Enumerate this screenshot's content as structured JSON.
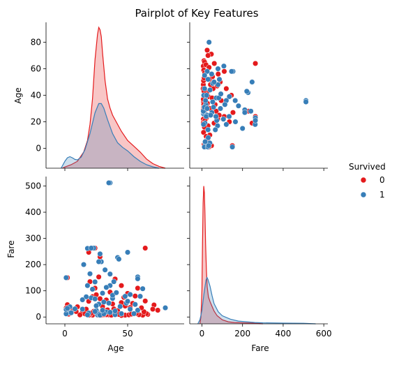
{
  "chart_data": {
    "type": "scatter",
    "title": "Pairplot of Key Features",
    "variables": [
      "Age",
      "Fare"
    ],
    "hue": {
      "title": "Survived",
      "levels": [
        "0",
        "1"
      ],
      "colors": {
        "0": "#e41a1c",
        "1": "#377eb8"
      }
    },
    "axes": {
      "Age": {
        "label": "Age",
        "range": [
          -15,
          95
        ],
        "ticks": [
          0,
          20,
          40,
          60,
          80
        ],
        "xticks": [
          0,
          50
        ]
      },
      "Fare": {
        "label": "Fare",
        "range": [
          -26,
          536
        ],
        "ticks": [
          0,
          100,
          200,
          300,
          400,
          500
        ],
        "xticks": [
          0,
          200,
          400,
          600
        ],
        "xrange": [
          -60,
          620
        ]
      }
    },
    "diagonal": {
      "Age": {
        "type": "kde",
        "ylim": [
          0,
          0.062
        ],
        "series": [
          {
            "name": "0",
            "x": [
              -2,
              0,
              5,
              10,
              15,
              18,
              20,
              22,
              24,
              26,
              27,
              28,
              29,
              30,
              32,
              34,
              36,
              38,
              40,
              45,
              50,
              55,
              60,
              65,
              70,
              75,
              80
            ],
            "y": [
              0.0,
              0.0005,
              0.0015,
              0.003,
              0.007,
              0.012,
              0.019,
              0.03,
              0.047,
              0.058,
              0.061,
              0.06,
              0.057,
              0.05,
              0.038,
              0.03,
              0.026,
              0.023,
              0.021,
              0.016,
              0.012,
              0.0095,
              0.007,
              0.004,
              0.002,
              0.0008,
              0.0
            ]
          },
          {
            "name": "1",
            "x": [
              -3,
              0,
              2,
              4,
              6,
              8,
              10,
              13,
              16,
              20,
              24,
              27,
              29,
              31,
              34,
              38,
              42,
              46,
              50,
              55,
              60,
              65,
              70,
              75
            ],
            "y": [
              0.0,
              0.003,
              0.0045,
              0.005,
              0.0045,
              0.0038,
              0.0036,
              0.0048,
              0.008,
              0.015,
              0.024,
              0.028,
              0.028,
              0.026,
              0.021,
              0.015,
              0.011,
              0.009,
              0.0075,
              0.005,
              0.003,
              0.0015,
              0.0006,
              0.0
            ]
          }
        ]
      },
      "Fare": {
        "type": "kde",
        "ylim": [
          0,
          0.0215
        ],
        "series": [
          {
            "name": "0",
            "x": [
              -10,
              -5,
              0,
              3,
              6,
              9,
              12,
              15,
              18,
              22,
              26,
              32,
              40,
              50,
              60,
              75,
              100,
              130,
              160,
              200,
              240,
              280,
              300
            ],
            "y": [
              0.0,
              0.001,
              0.005,
              0.012,
              0.018,
              0.0205,
              0.0195,
              0.0165,
              0.012,
              0.008,
              0.0055,
              0.004,
              0.0033,
              0.0026,
              0.0019,
              0.0012,
              0.0006,
              0.0003,
              0.0002,
              0.00015,
              0.0001,
              5e-05,
              0.0
            ]
          },
          {
            "name": "1",
            "x": [
              -20,
              -10,
              0,
              10,
              20,
              25,
              30,
              40,
              50,
              60,
              80,
              100,
              140,
              180,
              220,
              260,
              300,
              400,
              500,
              560
            ],
            "y": [
              0.0,
              0.0006,
              0.002,
              0.0045,
              0.0065,
              0.0069,
              0.0066,
              0.0056,
              0.0042,
              0.003,
              0.0018,
              0.0012,
              0.0007,
              0.0004,
              0.0003,
              0.0002,
              0.00015,
              0.0001,
              8e-05,
              0.0
            ]
          }
        ]
      }
    },
    "scatter": {
      "x": "Fare",
      "y": "Age",
      "points": [
        {
          "x": 7,
          "y": 22,
          "s": "0"
        },
        {
          "x": 8,
          "y": 35,
          "s": "0"
        },
        {
          "x": 52,
          "y": 54,
          "s": "0"
        },
        {
          "x": 21,
          "y": 2,
          "s": "0"
        },
        {
          "x": 8,
          "y": 20,
          "s": "0"
        },
        {
          "x": 31,
          "y": 39,
          "s": "0"
        },
        {
          "x": 18,
          "y": 14,
          "s": "0"
        },
        {
          "x": 26,
          "y": 31,
          "s": "0"
        },
        {
          "x": 8,
          "y": 44,
          "s": "0"
        },
        {
          "x": 7,
          "y": 29,
          "s": "0"
        },
        {
          "x": 46,
          "y": 71,
          "s": "0"
        },
        {
          "x": 26,
          "y": 74,
          "s": "0"
        },
        {
          "x": 10,
          "y": 66,
          "s": "0"
        },
        {
          "x": 13,
          "y": 65,
          "s": "0"
        },
        {
          "x": 30,
          "y": 70,
          "s": "0"
        },
        {
          "x": 7,
          "y": 62,
          "s": "0"
        },
        {
          "x": 20,
          "y": 63,
          "s": "0"
        },
        {
          "x": 35,
          "y": 61,
          "s": "0"
        },
        {
          "x": 9,
          "y": 59,
          "s": "0"
        },
        {
          "x": 14,
          "y": 57,
          "s": "0"
        },
        {
          "x": 26,
          "y": 58,
          "s": "0"
        },
        {
          "x": 61,
          "y": 64,
          "s": "0"
        },
        {
          "x": 80,
          "y": 56,
          "s": "0"
        },
        {
          "x": 110,
          "y": 58,
          "s": "0"
        },
        {
          "x": 75,
          "y": 47,
          "s": "0"
        },
        {
          "x": 90,
          "y": 50,
          "s": "0"
        },
        {
          "x": 55,
          "y": 45,
          "s": "0"
        },
        {
          "x": 120,
          "y": 45,
          "s": "0"
        },
        {
          "x": 145,
          "y": 40,
          "s": "0"
        },
        {
          "x": 95,
          "y": 36,
          "s": "0"
        },
        {
          "x": 65,
          "y": 33,
          "s": "0"
        },
        {
          "x": 40,
          "y": 30,
          "s": "0"
        },
        {
          "x": 230,
          "y": 28,
          "s": "0"
        },
        {
          "x": 263,
          "y": 64,
          "s": "0"
        },
        {
          "x": 263,
          "y": 24,
          "s": "0"
        },
        {
          "x": 247,
          "y": 19,
          "s": "0"
        },
        {
          "x": 153,
          "y": 27,
          "s": "0"
        },
        {
          "x": 110,
          "y": 24,
          "s": "0"
        },
        {
          "x": 78,
          "y": 22,
          "s": "0"
        },
        {
          "x": 60,
          "y": 19,
          "s": "0"
        },
        {
          "x": 30,
          "y": 17,
          "s": "0"
        },
        {
          "x": 12,
          "y": 16,
          "s": "0"
        },
        {
          "x": 8,
          "y": 12,
          "s": "0"
        },
        {
          "x": 21,
          "y": 9,
          "s": "0"
        },
        {
          "x": 31,
          "y": 4,
          "s": "0"
        },
        {
          "x": 29,
          "y": 7,
          "s": "0"
        },
        {
          "x": 39,
          "y": 10,
          "s": "0"
        },
        {
          "x": 47,
          "y": 2,
          "s": "0"
        },
        {
          "x": 34,
          "y": 1,
          "s": "0"
        },
        {
          "x": 11,
          "y": 3,
          "s": "0"
        },
        {
          "x": 7,
          "y": 48,
          "s": "0"
        },
        {
          "x": 8,
          "y": 51,
          "s": "0"
        },
        {
          "x": 13,
          "y": 40,
          "s": "0"
        },
        {
          "x": 16,
          "y": 37,
          "s": "0"
        },
        {
          "x": 9,
          "y": 33,
          "s": "0"
        },
        {
          "x": 24,
          "y": 42,
          "s": "0"
        },
        {
          "x": 16,
          "y": 25,
          "s": "0"
        },
        {
          "x": 14,
          "y": 28,
          "s": "0"
        },
        {
          "x": 7,
          "y": 26,
          "s": "0"
        },
        {
          "x": 22,
          "y": 23,
          "s": "0"
        },
        {
          "x": 27,
          "y": 34,
          "s": "0"
        },
        {
          "x": 6,
          "y": 45,
          "s": "0"
        },
        {
          "x": 11,
          "y": 53,
          "s": "0"
        },
        {
          "x": 36,
          "y": 52,
          "s": "0"
        },
        {
          "x": 42,
          "y": 48,
          "s": "0"
        },
        {
          "x": 50,
          "y": 38,
          "s": "0"
        },
        {
          "x": 70,
          "y": 28,
          "s": "0"
        },
        {
          "x": 85,
          "y": 25,
          "s": "0"
        },
        {
          "x": 135,
          "y": 20,
          "s": "0"
        },
        {
          "x": 150,
          "y": 2,
          "s": "0"
        },
        {
          "x": 7,
          "y": 19,
          "s": "0"
        },
        {
          "x": 9,
          "y": 31,
          "s": "0"
        },
        {
          "x": 7,
          "y": 37,
          "s": "0"
        },
        {
          "x": 10,
          "y": 43,
          "s": "0"
        },
        {
          "x": 15,
          "y": 21,
          "s": "0"
        },
        {
          "x": 73,
          "y": 21,
          "s": "1"
        },
        {
          "x": 71,
          "y": 38,
          "s": "1"
        },
        {
          "x": 8,
          "y": 26,
          "s": "1"
        },
        {
          "x": 53,
          "y": 35,
          "s": "1"
        },
        {
          "x": 11,
          "y": 27,
          "s": "1"
        },
        {
          "x": 30,
          "y": 14,
          "s": "1"
        },
        {
          "x": 16,
          "y": 4,
          "s": "1"
        },
        {
          "x": 26,
          "y": 58,
          "s": "1"
        },
        {
          "x": 13,
          "y": 55,
          "s": "1"
        },
        {
          "x": 35,
          "y": 80,
          "s": "1"
        },
        {
          "x": 512,
          "y": 36,
          "s": "1"
        },
        {
          "x": 512,
          "y": 35,
          "s": "1"
        },
        {
          "x": 263,
          "y": 23,
          "s": "1"
        },
        {
          "x": 262,
          "y": 18,
          "s": "1"
        },
        {
          "x": 263,
          "y": 21,
          "s": "1"
        },
        {
          "x": 247,
          "y": 50,
          "s": "1"
        },
        {
          "x": 227,
          "y": 42,
          "s": "1"
        },
        {
          "x": 221,
          "y": 43,
          "s": "1"
        },
        {
          "x": 211,
          "y": 29,
          "s": "1"
        },
        {
          "x": 211,
          "y": 27,
          "s": "1"
        },
        {
          "x": 164,
          "y": 36,
          "s": "1"
        },
        {
          "x": 153,
          "y": 58,
          "s": "1"
        },
        {
          "x": 146,
          "y": 58,
          "s": "1"
        },
        {
          "x": 135,
          "y": 39,
          "s": "1"
        },
        {
          "x": 134,
          "y": 24,
          "s": "1"
        },
        {
          "x": 120,
          "y": 36,
          "s": "1"
        },
        {
          "x": 113,
          "y": 33,
          "s": "1"
        },
        {
          "x": 106,
          "y": 22,
          "s": "1"
        },
        {
          "x": 91,
          "y": 30,
          "s": "1"
        },
        {
          "x": 83,
          "y": 38,
          "s": "1"
        },
        {
          "x": 86,
          "y": 52,
          "s": "1"
        },
        {
          "x": 79,
          "y": 48,
          "s": "1"
        },
        {
          "x": 77,
          "y": 17,
          "s": "1"
        },
        {
          "x": 66,
          "y": 14,
          "s": "1"
        },
        {
          "x": 57,
          "y": 31,
          "s": "1"
        },
        {
          "x": 53,
          "y": 49,
          "s": "1"
        },
        {
          "x": 49,
          "y": 27,
          "s": "1"
        },
        {
          "x": 39,
          "y": 4,
          "s": "1"
        },
        {
          "x": 31,
          "y": 8,
          "s": "1"
        },
        {
          "x": 26,
          "y": 25,
          "s": "1"
        },
        {
          "x": 21,
          "y": 24,
          "s": "1"
        },
        {
          "x": 19,
          "y": 33,
          "s": "1"
        },
        {
          "x": 15,
          "y": 19,
          "s": "1"
        },
        {
          "x": 13,
          "y": 45,
          "s": "1"
        },
        {
          "x": 12,
          "y": 1,
          "s": "1"
        },
        {
          "x": 9,
          "y": 40,
          "s": "1"
        },
        {
          "x": 8,
          "y": 18,
          "s": "1"
        },
        {
          "x": 7,
          "y": 28,
          "s": "1"
        },
        {
          "x": 23,
          "y": 40,
          "s": "1"
        },
        {
          "x": 43,
          "y": 25,
          "s": "1"
        },
        {
          "x": 16,
          "y": 5,
          "s": "1"
        },
        {
          "x": 29,
          "y": 1,
          "s": "1"
        },
        {
          "x": 33,
          "y": 2,
          "s": "1"
        },
        {
          "x": 150,
          "y": 1,
          "s": "1"
        },
        {
          "x": 108,
          "y": 62,
          "s": "1"
        },
        {
          "x": 200,
          "y": 15,
          "s": "1"
        },
        {
          "x": 241,
          "y": 28,
          "s": "1"
        },
        {
          "x": 165,
          "y": 20,
          "s": "1"
        },
        {
          "x": 79,
          "y": 60,
          "s": "1"
        },
        {
          "x": 60,
          "y": 50,
          "s": "1"
        },
        {
          "x": 40,
          "y": 44,
          "s": "1"
        },
        {
          "x": 48,
          "y": 56,
          "s": "1"
        },
        {
          "x": 30,
          "y": 52,
          "s": "1"
        },
        {
          "x": 12,
          "y": 31,
          "s": "1"
        },
        {
          "x": 18,
          "y": 36,
          "s": "1"
        },
        {
          "x": 26,
          "y": 30,
          "s": "1"
        },
        {
          "x": 93,
          "y": 41,
          "s": "1"
        },
        {
          "x": 69,
          "y": 24,
          "s": "1"
        },
        {
          "x": 120,
          "y": 18,
          "s": "1"
        },
        {
          "x": 180,
          "y": 32,
          "s": "1"
        }
      ]
    }
  }
}
